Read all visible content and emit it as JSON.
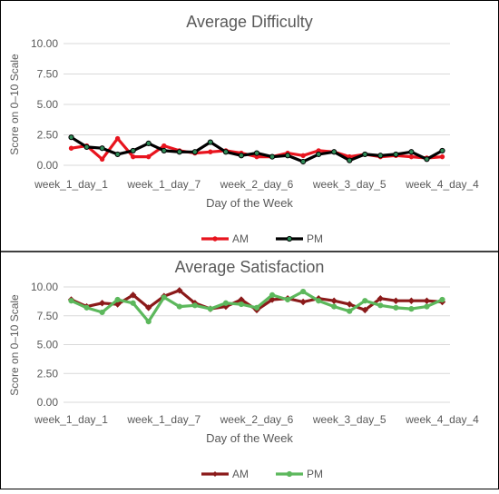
{
  "colors": {
    "am_difficulty": "#e8141e",
    "pm_difficulty": "#000000",
    "pm_difficulty_marker_fill": "#2e8b57",
    "am_satisfaction": "#8b1a1a",
    "pm_satisfaction": "#5cb85c",
    "frame": "#000000",
    "grid": "#d9d9d9",
    "text": "#595959"
  },
  "chart_data": [
    {
      "type": "line",
      "title": "Average Difficulty",
      "xlabel": "Day of the Week",
      "ylabel": "Score on 0–10 Scale",
      "ylim": [
        0,
        10
      ],
      "yticks": [
        "0.00",
        "2.50",
        "5.00",
        "7.50",
        "10.00"
      ],
      "grid": true,
      "legend_position": "bottom",
      "x": [
        "week_1_day_1",
        "week_1_day_2",
        "week_1_day_3",
        "week_1_day_4",
        "week_1_day_5",
        "week_1_day_6",
        "week_1_day_7",
        "week_2_day_1",
        "week_2_day_2",
        "week_2_day_3",
        "week_2_day_4",
        "week_2_day_5",
        "week_2_day_6",
        "week_2_day_7",
        "week_3_day_1",
        "week_3_day_2",
        "week_3_day_3",
        "week_3_day_4",
        "week_3_day_5",
        "week_3_day_6",
        "week_3_day_7",
        "week_4_day_1",
        "week_4_day_2",
        "week_4_day_3",
        "week_4_day_4"
      ],
      "xtick_labels": [
        "week_1_day_1",
        "week_1_day_7",
        "week_2_day_6",
        "week_3_day_5",
        "week_4_day_4"
      ],
      "xtick_indices": [
        0,
        6,
        12,
        18,
        24
      ],
      "series": [
        {
          "name": "AM",
          "values": [
            1.4,
            1.6,
            0.5,
            2.2,
            0.7,
            0.7,
            1.6,
            1.2,
            1.0,
            1.1,
            1.2,
            1.0,
            0.7,
            0.7,
            1.0,
            0.8,
            1.2,
            1.1,
            0.7,
            0.9,
            0.7,
            0.8,
            0.7,
            0.6,
            0.7
          ]
        },
        {
          "name": "PM",
          "values": [
            2.3,
            1.5,
            1.4,
            0.9,
            1.2,
            1.8,
            1.2,
            1.1,
            1.1,
            1.9,
            1.1,
            0.8,
            1.0,
            0.7,
            0.8,
            0.3,
            0.9,
            1.1,
            0.4,
            0.9,
            0.8,
            0.9,
            1.1,
            0.5,
            1.2
          ]
        }
      ]
    },
    {
      "type": "line",
      "title": "Average Satisfaction",
      "xlabel": "Day of the Week",
      "ylabel": "Score on 0–10 Scale",
      "ylim": [
        0,
        10
      ],
      "yticks": [
        "0.00",
        "2.50",
        "5.00",
        "7.50",
        "10.00"
      ],
      "grid": true,
      "legend_position": "bottom",
      "x": [
        "week_1_day_1",
        "week_1_day_2",
        "week_1_day_3",
        "week_1_day_4",
        "week_1_day_5",
        "week_1_day_6",
        "week_1_day_7",
        "week_2_day_1",
        "week_2_day_2",
        "week_2_day_3",
        "week_2_day_4",
        "week_2_day_5",
        "week_2_day_6",
        "week_2_day_7",
        "week_3_day_1",
        "week_3_day_2",
        "week_3_day_3",
        "week_3_day_4",
        "week_3_day_5",
        "week_3_day_6",
        "week_3_day_7",
        "week_4_day_1",
        "week_4_day_2",
        "week_4_day_3",
        "week_4_day_4"
      ],
      "xtick_labels": [
        "week_1_day_1",
        "week_1_day_7",
        "week_2_day_6",
        "week_3_day_5",
        "week_4_day_4"
      ],
      "xtick_indices": [
        0,
        6,
        12,
        18,
        24
      ],
      "series": [
        {
          "name": "AM",
          "values": [
            8.9,
            8.3,
            8.6,
            8.5,
            9.3,
            8.2,
            9.2,
            9.7,
            8.6,
            8.1,
            8.3,
            8.9,
            8.0,
            8.9,
            9.0,
            8.7,
            9.0,
            8.8,
            8.5,
            8.0,
            9.0,
            8.8,
            8.8,
            8.8,
            8.7
          ]
        },
        {
          "name": "PM",
          "values": [
            8.8,
            8.2,
            7.8,
            8.9,
            8.6,
            7.0,
            9.1,
            8.3,
            8.4,
            8.1,
            8.6,
            8.5,
            8.2,
            9.3,
            8.9,
            9.6,
            8.8,
            8.3,
            7.9,
            8.8,
            8.4,
            8.2,
            8.1,
            8.3,
            8.9
          ]
        }
      ]
    }
  ]
}
